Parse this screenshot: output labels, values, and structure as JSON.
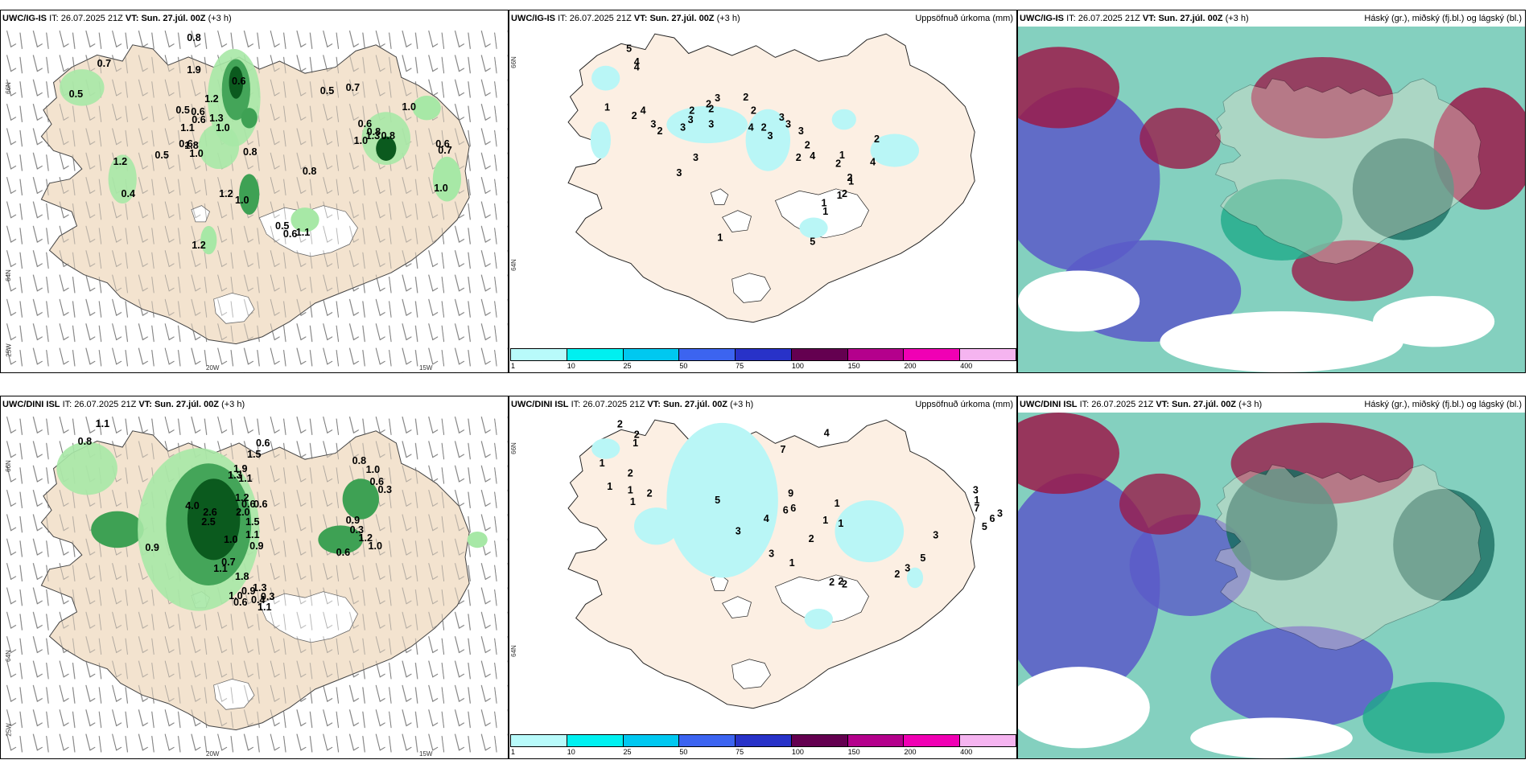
{
  "rows": [
    {
      "model": "UWC/IG-IS",
      "it_label": "IT:",
      "it_time": "26.07.2025 21Z",
      "vt_label": "VT:",
      "vt_time": "Sun. 27.júl. 00Z",
      "lead": "(+3 h)",
      "wind_values": [
        "0.8",
        "0.7",
        "0.5",
        "1.9",
        "0.6",
        "0.5",
        "1.2",
        "0.5",
        "0.6",
        "1.3",
        "0.6",
        "1.1",
        "1.0",
        "0.6",
        "0.5",
        "1.8",
        "1.0",
        "0.8",
        "1.2",
        "0.4",
        "1.2",
        "1.0",
        "0.5",
        "0.6",
        "1.1",
        "1.2",
        "0.7",
        "1.0",
        "0.6",
        "0.8",
        "1.3",
        "1.0",
        "0.8",
        "0.6",
        "0.7",
        "1.0",
        "0.8"
      ],
      "precip_values": [
        "5",
        "4",
        "4",
        "1",
        "4",
        "2",
        "3",
        "2",
        "3",
        "2",
        "3",
        "3",
        "2",
        "3",
        "2",
        "2",
        "2",
        "4",
        "2",
        "3",
        "3",
        "3",
        "3",
        "2",
        "2",
        "4",
        "1",
        "2",
        "2",
        "4",
        "1",
        "3",
        "3",
        "5",
        "2",
        "2",
        "1",
        "1",
        "1",
        "1"
      ],
      "precip_title": "Uppsöfnuð úrkoma (mm)",
      "cloud_title": "Háský (gr.), miðský (fj.bl.) og lágský (bl.)"
    },
    {
      "model": "UWC/DINI ISL",
      "it_label": "IT:",
      "it_time": "26.07.2025 21Z",
      "vt_label": "VT:",
      "vt_time": "Sun. 27.júl. 00Z",
      "lead": "(+3 h)",
      "wind_values": [
        "1.1",
        "0.8",
        "0.6",
        "1.5",
        "1.9",
        "1.3",
        "1.1",
        "1.2",
        "0.6",
        "0.6",
        "4.0",
        "2.6",
        "2.5",
        "2.0",
        "1.5",
        "1.1",
        "1.0",
        "0.9",
        "0.9",
        "0.7",
        "1.1",
        "1.8",
        "1.3",
        "0.9",
        "1.0",
        "0.6",
        "0.4",
        "0.3",
        "0.8",
        "1.0",
        "0.6",
        "0.3",
        "0.9",
        "0.3",
        "1.2",
        "0.6",
        "1.1",
        "1.0"
      ],
      "precip_values": [
        "2",
        "2",
        "1",
        "1",
        "1",
        "2",
        "1",
        "2",
        "1",
        "7",
        "4",
        "9",
        "6",
        "4",
        "3",
        "5",
        "3",
        "6",
        "1",
        "1",
        "1",
        "2",
        "2",
        "2",
        "2",
        "3",
        "1",
        "7",
        "3",
        "6",
        "5",
        "3",
        "5",
        "1",
        "2",
        "3",
        "3",
        "1"
      ],
      "precip_title": "Uppsöfnuð úrkoma (mm)",
      "cloud_title": "Háský (gr.), miðský (fj.bl.) og lágský (bl.)"
    }
  ],
  "axes": {
    "lat_66": "66N",
    "lat_64": "64N",
    "lon_25": "25W",
    "lon_20": "20W",
    "lon_15": "15W"
  },
  "colorbar": {
    "labels": [
      "1",
      "10",
      "25",
      "50",
      "75",
      "100",
      "150",
      "200",
      "400"
    ],
    "colors": [
      "#b8fafa",
      "#00f0f0",
      "#00c8f0",
      "#3c64f0",
      "#2832c8",
      "#640050",
      "#b4008c",
      "#f000b4",
      "#f5b4f0"
    ]
  },
  "colors": {
    "land": "#f3e3cf",
    "precip_light": "#b9f6f6",
    "cloud_high": "#5b5bc8",
    "cloud_mid": "#9a1b4a",
    "cloud_low": "#1faa8a"
  }
}
